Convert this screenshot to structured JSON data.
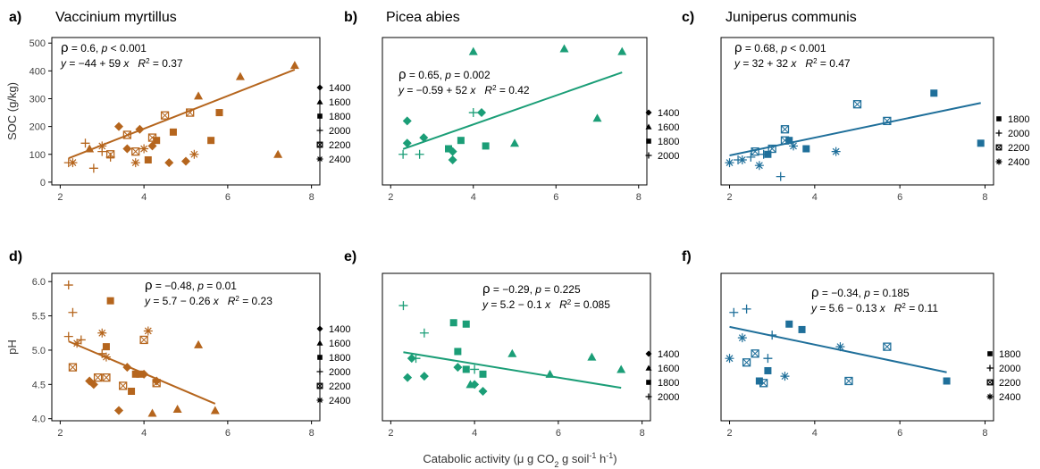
{
  "xaxis": {
    "label_parts": [
      "Catabolic activity (",
      "μ",
      " g CO",
      "2",
      " g soil",
      "-1",
      " h",
      "-1",
      ")"
    ],
    "ticks": [
      2,
      4,
      6,
      8
    ],
    "range": [
      1.8,
      8.2
    ]
  },
  "colors": {
    "vaccinium": "#b5651d",
    "picea": "#1b9e77",
    "juniperus": "#1f6f9a"
  },
  "chart_data": [
    {
      "type": "scatter",
      "id": "a",
      "letter": "a)",
      "title": "Vaccinium myrtillus",
      "ylabel": "SOC (g/kg)",
      "ylim": [
        -10,
        520
      ],
      "yticks": [
        0,
        100,
        200,
        300,
        400,
        500
      ],
      "color": "#b5651d",
      "rho": "= 0.6, ",
      "p": "< 0.001",
      "eq": "= −44 + 59",
      "r2": "= 0.37",
      "regression": {
        "intercept": -44,
        "slope": 59
      },
      "legend": [
        "1400",
        "1600",
        "1800",
        "2000",
        "2200",
        "2400"
      ],
      "points": [
        {
          "x": 3.4,
          "y": 200,
          "m": "1400"
        },
        {
          "x": 3.6,
          "y": 120,
          "m": "1400"
        },
        {
          "x": 4.2,
          "y": 130,
          "m": "1400"
        },
        {
          "x": 3.9,
          "y": 190,
          "m": "1400"
        },
        {
          "x": 4.6,
          "y": 70,
          "m": "1400"
        },
        {
          "x": 5.0,
          "y": 75,
          "m": "1400"
        },
        {
          "x": 5.3,
          "y": 310,
          "m": "1600"
        },
        {
          "x": 6.3,
          "y": 380,
          "m": "1600"
        },
        {
          "x": 7.6,
          "y": 420,
          "m": "1600"
        },
        {
          "x": 7.2,
          "y": 100,
          "m": "1600"
        },
        {
          "x": 2.7,
          "y": 120,
          "m": "1600"
        },
        {
          "x": 4.1,
          "y": 80,
          "m": "1800"
        },
        {
          "x": 4.3,
          "y": 150,
          "m": "1800"
        },
        {
          "x": 4.7,
          "y": 180,
          "m": "1800"
        },
        {
          "x": 5.6,
          "y": 150,
          "m": "1800"
        },
        {
          "x": 5.8,
          "y": 250,
          "m": "1800"
        },
        {
          "x": 2.2,
          "y": 70,
          "m": "2000"
        },
        {
          "x": 2.6,
          "y": 140,
          "m": "2000"
        },
        {
          "x": 2.8,
          "y": 50,
          "m": "2000"
        },
        {
          "x": 3.0,
          "y": 110,
          "m": "2000"
        },
        {
          "x": 3.2,
          "y": 90,
          "m": "2000"
        },
        {
          "x": 3.2,
          "y": 100,
          "m": "2200"
        },
        {
          "x": 3.6,
          "y": 170,
          "m": "2200"
        },
        {
          "x": 3.8,
          "y": 110,
          "m": "2200"
        },
        {
          "x": 4.2,
          "y": 160,
          "m": "2200"
        },
        {
          "x": 4.5,
          "y": 240,
          "m": "2200"
        },
        {
          "x": 5.1,
          "y": 250,
          "m": "2200"
        },
        {
          "x": 2.3,
          "y": 70,
          "m": "2400"
        },
        {
          "x": 3.0,
          "y": 130,
          "m": "2400"
        },
        {
          "x": 3.8,
          "y": 70,
          "m": "2400"
        },
        {
          "x": 4.0,
          "y": 120,
          "m": "2400"
        },
        {
          "x": 5.2,
          "y": 100,
          "m": "2400"
        }
      ]
    },
    {
      "type": "scatter",
      "id": "b",
      "letter": "b)",
      "title": "Picea abies",
      "ylabel": "",
      "ylim": [
        -10,
        520
      ],
      "yticks": [],
      "color": "#1b9e77",
      "rho": "= 0.65, ",
      "p": "= 0.002",
      "eq": "= −0.59 + 52",
      "r2": "= 0.42",
      "regression": {
        "intercept": -0.59,
        "slope": 52
      },
      "legend": [
        "1400",
        "1600",
        "1800",
        "2000"
      ],
      "points": [
        {
          "x": 2.4,
          "y": 220,
          "m": "1400"
        },
        {
          "x": 2.4,
          "y": 140,
          "m": "1400"
        },
        {
          "x": 2.8,
          "y": 160,
          "m": "1400"
        },
        {
          "x": 3.5,
          "y": 110,
          "m": "1400"
        },
        {
          "x": 3.5,
          "y": 80,
          "m": "1400"
        },
        {
          "x": 4.2,
          "y": 250,
          "m": "1400"
        },
        {
          "x": 4.0,
          "y": 470,
          "m": "1600"
        },
        {
          "x": 5.0,
          "y": 140,
          "m": "1600"
        },
        {
          "x": 6.2,
          "y": 480,
          "m": "1600"
        },
        {
          "x": 7.0,
          "y": 230,
          "m": "1600"
        },
        {
          "x": 7.6,
          "y": 470,
          "m": "1600"
        },
        {
          "x": 3.4,
          "y": 120,
          "m": "1800"
        },
        {
          "x": 3.7,
          "y": 150,
          "m": "1800"
        },
        {
          "x": 4.3,
          "y": 130,
          "m": "1800"
        },
        {
          "x": 2.3,
          "y": 100,
          "m": "2000"
        },
        {
          "x": 2.7,
          "y": 100,
          "m": "2000"
        },
        {
          "x": 4.0,
          "y": 250,
          "m": "2000"
        }
      ]
    },
    {
      "type": "scatter",
      "id": "c",
      "letter": "c)",
      "title": "Juniperus communis",
      "ylabel": "",
      "ylim": [
        -10,
        520
      ],
      "yticks": [],
      "color": "#1f6f9a",
      "rho": "= 0.68, ",
      "p": "< 0.001",
      "eq": "= 32 + 32",
      "r2": "= 0.47",
      "regression": {
        "intercept": 32,
        "slope": 32
      },
      "legend": [
        "1800",
        "2000",
        "2200",
        "2400"
      ],
      "points": [
        {
          "x": 2.9,
          "y": 100,
          "m": "1800"
        },
        {
          "x": 3.4,
          "y": 150,
          "m": "1800"
        },
        {
          "x": 3.8,
          "y": 120,
          "m": "1800"
        },
        {
          "x": 6.8,
          "y": 320,
          "m": "1800"
        },
        {
          "x": 7.9,
          "y": 140,
          "m": "1800"
        },
        {
          "x": 2.2,
          "y": 80,
          "m": "2000"
        },
        {
          "x": 2.5,
          "y": 90,
          "m": "2000"
        },
        {
          "x": 3.2,
          "y": 20,
          "m": "2000"
        },
        {
          "x": 2.8,
          "y": 100,
          "m": "2000"
        },
        {
          "x": 2.6,
          "y": 110,
          "m": "2200"
        },
        {
          "x": 3.0,
          "y": 120,
          "m": "2200"
        },
        {
          "x": 3.3,
          "y": 150,
          "m": "2200"
        },
        {
          "x": 3.3,
          "y": 190,
          "m": "2200"
        },
        {
          "x": 5.0,
          "y": 280,
          "m": "2200"
        },
        {
          "x": 5.7,
          "y": 220,
          "m": "2200"
        },
        {
          "x": 2.0,
          "y": 70,
          "m": "2400"
        },
        {
          "x": 2.3,
          "y": 80,
          "m": "2400"
        },
        {
          "x": 2.7,
          "y": 60,
          "m": "2400"
        },
        {
          "x": 3.5,
          "y": 130,
          "m": "2400"
        },
        {
          "x": 4.5,
          "y": 110,
          "m": "2400"
        }
      ]
    },
    {
      "type": "scatter",
      "id": "d",
      "letter": "d)",
      "title": "",
      "ylabel": "pH",
      "ylim": [
        3.97,
        6.12
      ],
      "yticks": [
        4.0,
        4.5,
        5.0,
        5.5,
        6.0
      ],
      "yticklabels": [
        "4.0",
        "4.5",
        "5.0",
        "5.5",
        "6.0"
      ],
      "color": "#b5651d",
      "rho": "= −0.48, ",
      "p": "= 0.01",
      "eq": "= 5.7 − 0.26",
      "r2": "= 0.23",
      "regression": {
        "intercept": 5.7,
        "slope": -0.26
      },
      "legend": [
        "1400",
        "1600",
        "1800",
        "2000",
        "2200",
        "2400"
      ],
      "points": [
        {
          "x": 2.7,
          "y": 4.55,
          "m": "1400"
        },
        {
          "x": 2.8,
          "y": 4.5,
          "m": "1400"
        },
        {
          "x": 3.4,
          "y": 4.12,
          "m": "1400"
        },
        {
          "x": 3.6,
          "y": 4.75,
          "m": "1400"
        },
        {
          "x": 4.0,
          "y": 4.65,
          "m": "1400"
        },
        {
          "x": 4.3,
          "y": 4.55,
          "m": "1400"
        },
        {
          "x": 4.2,
          "y": 4.08,
          "m": "1600"
        },
        {
          "x": 4.8,
          "y": 4.14,
          "m": "1600"
        },
        {
          "x": 5.3,
          "y": 5.08,
          "m": "1600"
        },
        {
          "x": 5.7,
          "y": 4.12,
          "m": "1600"
        },
        {
          "x": 3.2,
          "y": 5.72,
          "m": "1800"
        },
        {
          "x": 3.1,
          "y": 5.05,
          "m": "1800"
        },
        {
          "x": 3.8,
          "y": 4.65,
          "m": "1800"
        },
        {
          "x": 3.9,
          "y": 4.65,
          "m": "1800"
        },
        {
          "x": 3.7,
          "y": 4.4,
          "m": "1800"
        },
        {
          "x": 2.2,
          "y": 5.95,
          "m": "2000"
        },
        {
          "x": 2.3,
          "y": 5.55,
          "m": "2000"
        },
        {
          "x": 2.2,
          "y": 5.2,
          "m": "2000"
        },
        {
          "x": 2.5,
          "y": 5.15,
          "m": "2000"
        },
        {
          "x": 3.0,
          "y": 4.95,
          "m": "2000"
        },
        {
          "x": 2.3,
          "y": 4.75,
          "m": "2200"
        },
        {
          "x": 2.9,
          "y": 4.6,
          "m": "2200"
        },
        {
          "x": 3.1,
          "y": 4.6,
          "m": "2200"
        },
        {
          "x": 3.5,
          "y": 4.48,
          "m": "2200"
        },
        {
          "x": 4.0,
          "y": 5.15,
          "m": "2200"
        },
        {
          "x": 4.3,
          "y": 4.52,
          "m": "2200"
        },
        {
          "x": 2.4,
          "y": 5.1,
          "m": "2400"
        },
        {
          "x": 3.0,
          "y": 5.25,
          "m": "2400"
        },
        {
          "x": 3.1,
          "y": 4.9,
          "m": "2400"
        },
        {
          "x": 4.1,
          "y": 5.28,
          "m": "2400"
        }
      ]
    },
    {
      "type": "scatter",
      "id": "e",
      "letter": "e)",
      "title": "",
      "ylabel": "",
      "ylim": [
        3.97,
        6.12
      ],
      "yticks": [],
      "color": "#1b9e77",
      "rho": "= −0.29, ",
      "p": "= 0.225",
      "eq": "= 5.2 − 0.1",
      "r2": "= 0.085",
      "regression": {
        "intercept": 5.2,
        "slope": -0.1
      },
      "legend": [
        "1400",
        "1600",
        "1800",
        "2000"
      ],
      "points": [
        {
          "x": 2.4,
          "y": 4.6,
          "m": "1400"
        },
        {
          "x": 2.5,
          "y": 4.88,
          "m": "1400"
        },
        {
          "x": 2.8,
          "y": 4.62,
          "m": "1400"
        },
        {
          "x": 3.6,
          "y": 4.75,
          "m": "1400"
        },
        {
          "x": 4.0,
          "y": 4.5,
          "m": "1400"
        },
        {
          "x": 4.2,
          "y": 4.4,
          "m": "1400"
        },
        {
          "x": 3.9,
          "y": 4.5,
          "m": "1600"
        },
        {
          "x": 4.9,
          "y": 4.95,
          "m": "1600"
        },
        {
          "x": 5.8,
          "y": 4.65,
          "m": "1600"
        },
        {
          "x": 6.8,
          "y": 4.9,
          "m": "1600"
        },
        {
          "x": 7.5,
          "y": 4.72,
          "m": "1600"
        },
        {
          "x": 3.5,
          "y": 5.4,
          "m": "1800"
        },
        {
          "x": 3.8,
          "y": 5.38,
          "m": "1800"
        },
        {
          "x": 3.6,
          "y": 4.98,
          "m": "1800"
        },
        {
          "x": 3.8,
          "y": 4.72,
          "m": "1800"
        },
        {
          "x": 4.2,
          "y": 4.65,
          "m": "1800"
        },
        {
          "x": 2.3,
          "y": 5.65,
          "m": "2000"
        },
        {
          "x": 2.8,
          "y": 5.25,
          "m": "2000"
        },
        {
          "x": 2.6,
          "y": 4.88,
          "m": "2000"
        },
        {
          "x": 4.0,
          "y": 4.72,
          "m": "2000"
        }
      ]
    },
    {
      "type": "scatter",
      "id": "f",
      "letter": "f)",
      "title": "",
      "ylabel": "",
      "ylim": [
        3.97,
        6.12
      ],
      "yticks": [],
      "color": "#1f6f9a",
      "rho": "= −0.34, ",
      "p": "= 0.185",
      "eq": "= 5.6 − 0.13",
      "r2": "= 0.11",
      "regression": {
        "intercept": 5.6,
        "slope": -0.13
      },
      "legend": [
        "1800",
        "2000",
        "2200",
        "2400"
      ],
      "points": [
        {
          "x": 2.7,
          "y": 4.55,
          "m": "1800"
        },
        {
          "x": 2.9,
          "y": 4.7,
          "m": "1800"
        },
        {
          "x": 3.4,
          "y": 5.38,
          "m": "1800"
        },
        {
          "x": 3.7,
          "y": 5.3,
          "m": "1800"
        },
        {
          "x": 7.1,
          "y": 4.55,
          "m": "1800"
        },
        {
          "x": 2.1,
          "y": 5.55,
          "m": "2000"
        },
        {
          "x": 2.4,
          "y": 5.6,
          "m": "2000"
        },
        {
          "x": 3.0,
          "y": 5.22,
          "m": "2000"
        },
        {
          "x": 2.9,
          "y": 4.88,
          "m": "2000"
        },
        {
          "x": 2.4,
          "y": 4.82,
          "m": "2200"
        },
        {
          "x": 2.8,
          "y": 4.52,
          "m": "2200"
        },
        {
          "x": 4.8,
          "y": 4.55,
          "m": "2200"
        },
        {
          "x": 5.7,
          "y": 5.05,
          "m": "2200"
        },
        {
          "x": 2.6,
          "y": 4.95,
          "m": "2200"
        },
        {
          "x": 2.0,
          "y": 4.88,
          "m": "2400"
        },
        {
          "x": 2.3,
          "y": 5.18,
          "m": "2400"
        },
        {
          "x": 3.3,
          "y": 4.62,
          "m": "2400"
        },
        {
          "x": 4.6,
          "y": 5.05,
          "m": "2400"
        }
      ]
    }
  ]
}
